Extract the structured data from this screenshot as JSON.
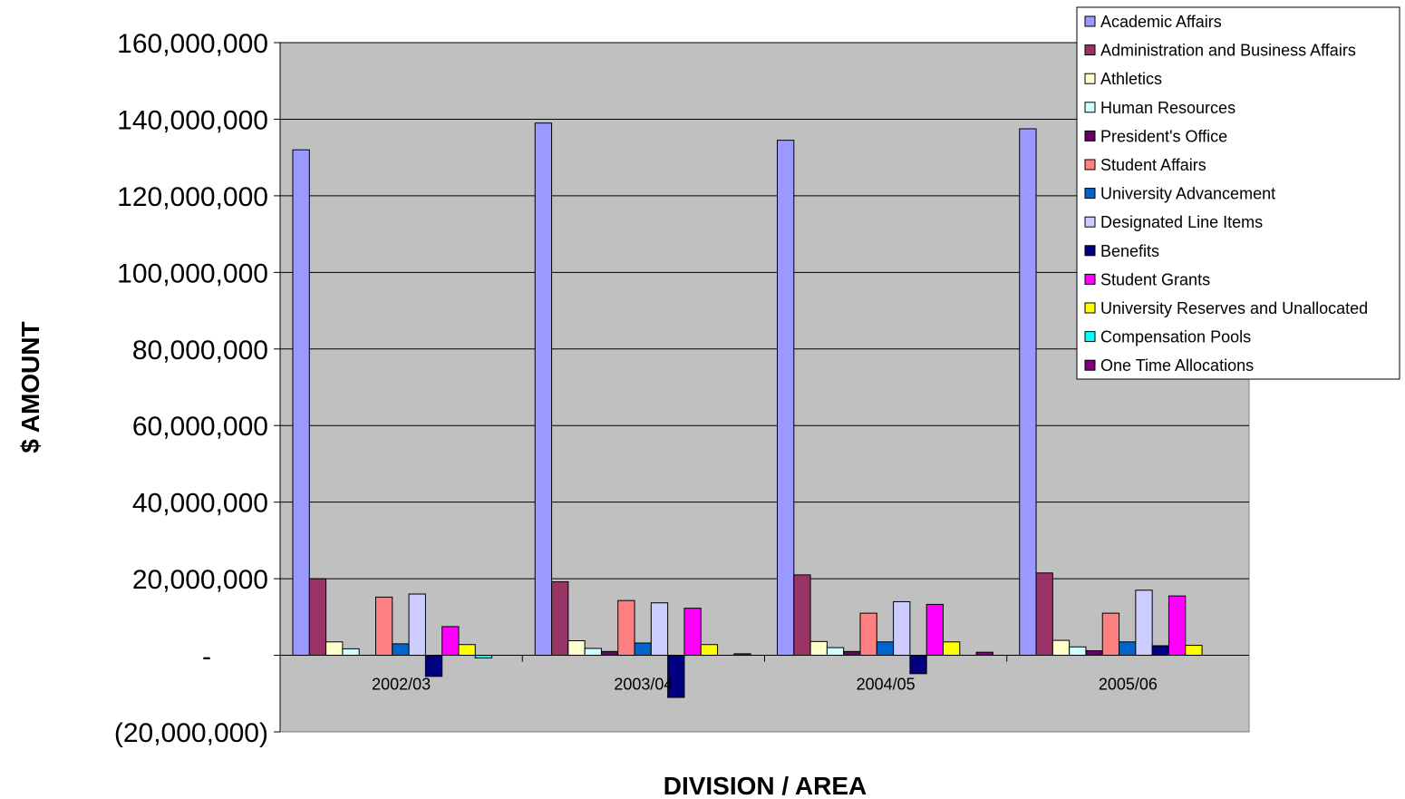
{
  "chart_data": {
    "type": "bar",
    "title": "",
    "xlabel": "DIVISION / AREA",
    "ylabel": "$ AMOUNT",
    "ylim": [
      -20000000,
      160000000
    ],
    "yticks": [
      -20000000,
      0,
      20000000,
      40000000,
      60000000,
      80000000,
      100000000,
      120000000,
      140000000,
      160000000
    ],
    "ytick_labels": [
      "(20,000,000)",
      "-",
      "20,000,000",
      "40,000,000",
      "60,000,000",
      "80,000,000",
      "100,000,000",
      "120,000,000",
      "140,000,000",
      "160,000,000"
    ],
    "grid": true,
    "legend_position": "top-right",
    "categories": [
      "2002/03",
      "2003/04",
      "2004/05",
      "2005/06"
    ],
    "series": [
      {
        "name": "Academic Affairs",
        "color": "#9999FF",
        "values": [
          132000000,
          139000000,
          134500000,
          137500000
        ]
      },
      {
        "name": "Administration and Business Affairs",
        "color": "#993366",
        "values": [
          20000000,
          19200000,
          21000000,
          21500000
        ]
      },
      {
        "name": "Athletics",
        "color": "#FFFFCC",
        "values": [
          3500000,
          3800000,
          3600000,
          3900000
        ]
      },
      {
        "name": "Human Resources",
        "color": "#CCFFFF",
        "values": [
          1700000,
          1800000,
          2000000,
          2200000
        ]
      },
      {
        "name": "President's Office",
        "color": "#660066",
        "values": [
          0,
          1000000,
          1000000,
          1200000
        ]
      },
      {
        "name": "Student Affairs",
        "color": "#FF8080",
        "values": [
          15200000,
          14300000,
          11000000,
          11000000
        ]
      },
      {
        "name": "University Advancement",
        "color": "#0066CC",
        "values": [
          3000000,
          3200000,
          3500000,
          3500000
        ]
      },
      {
        "name": "Designated Line Items",
        "color": "#CCCCFF",
        "values": [
          16000000,
          13700000,
          14000000,
          17000000
        ]
      },
      {
        "name": "Benefits",
        "color": "#000080",
        "values": [
          -5500000,
          -11000000,
          -4800000,
          2500000
        ]
      },
      {
        "name": "Student Grants",
        "color": "#FF00FF",
        "values": [
          7500000,
          12300000,
          13300000,
          15500000
        ]
      },
      {
        "name": "University Reserves and Unallocated",
        "color": "#FFFF00",
        "values": [
          2800000,
          2800000,
          3500000,
          2600000
        ]
      },
      {
        "name": "Compensation Pools",
        "color": "#00FFFF",
        "values": [
          -700000,
          0,
          0,
          0
        ]
      },
      {
        "name": "One Time Allocations",
        "color": "#800080",
        "values": [
          0,
          400000,
          800000,
          0
        ]
      }
    ]
  }
}
